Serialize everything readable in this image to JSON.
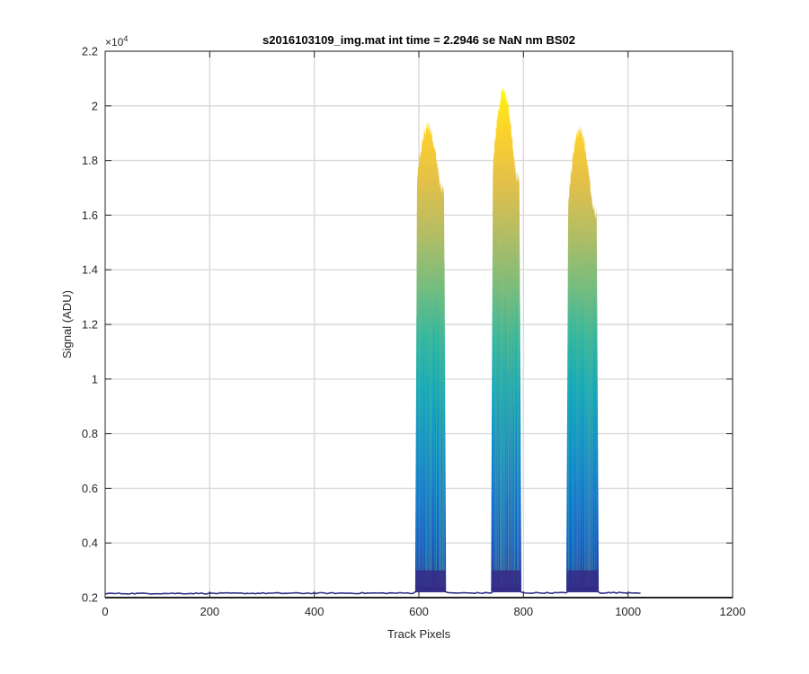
{
  "figure": {
    "background": "#ffffff",
    "axes_background": "#ffffff",
    "grid_color": "#d9d9d9",
    "axis_color": "#262626"
  },
  "chart_data": {
    "type": "line",
    "title": "s2016103109_img.mat int time = 2.2946 se  NaN nm BS02",
    "xlabel": "Track Pixels",
    "ylabel": "Signal (ADU)",
    "xlim": [
      0,
      1200
    ],
    "ylim": [
      0.2,
      2.2
    ],
    "y_exponent_label": "×10",
    "y_exponent_power": "4",
    "x_ticks": [
      0,
      200,
      400,
      600,
      800,
      1000,
      1200
    ],
    "y_ticks": [
      0.2,
      0.4,
      0.6,
      0.8,
      1,
      1.2,
      1.4,
      1.6,
      1.8,
      2,
      2.2
    ],
    "x_tick_labels": [
      "0",
      "200",
      "400",
      "600",
      "800",
      "1000",
      "1200"
    ],
    "y_tick_labels": [
      "0.2",
      "0.4",
      "0.6",
      "0.8",
      "1",
      "1.2",
      "1.4",
      "1.6",
      "1.8",
      "2",
      "2.2"
    ],
    "grid": true,
    "legend": "none",
    "colormap": "parula",
    "colormap_stops": [
      "#352a87",
      "#0f5cdd",
      "#1481d6",
      "#06a4ca",
      "#2eb7a4",
      "#87bf77",
      "#d1bb59",
      "#fec832",
      "#f9fb0e"
    ],
    "baseline": {
      "x": [
        0,
        1024
      ],
      "y": [
        0.215,
        0.218
      ],
      "color": "#35358a"
    },
    "peaks": [
      {
        "x_start": 593,
        "x_end": 652,
        "peak_y": 1.965,
        "rise_y": 1.73,
        "color_scale_max": 2.1
      },
      {
        "x_start": 738,
        "x_end": 796,
        "peak_y": 2.1,
        "rise_y": 1.78,
        "color_scale_max": 2.1
      },
      {
        "x_start": 882,
        "x_end": 944,
        "peak_y": 1.955,
        "rise_y": 1.65,
        "color_scale_max": 2.1
      }
    ],
    "series": [
      {
        "values_note": ""
      }
    ]
  }
}
